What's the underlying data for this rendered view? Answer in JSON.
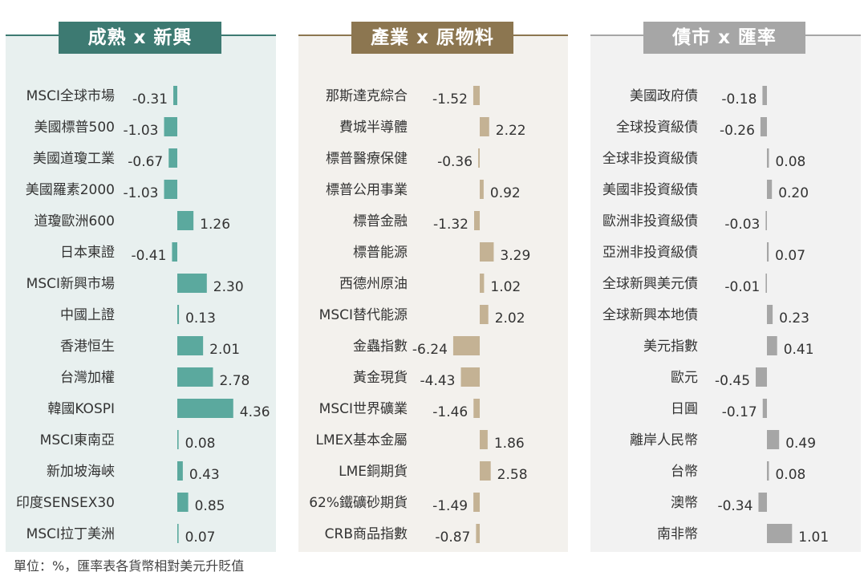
{
  "footnote": "單位：%，匯率表各貨幣相對美元升貶值",
  "chart_data": [
    {
      "type": "bar",
      "title": "成熟 x 新興",
      "orientation": "horizontal",
      "colors": {
        "accent": "#3d7a72",
        "bar": "#5ba99e",
        "background": "#e8f0ef"
      },
      "categories": [
        "MSCI全球市場",
        "美國標普500",
        "美國道瓊工業",
        "美國羅素2000",
        "道瓊歐洲600",
        "日本東證",
        "MSCI新興市場",
        "中國上證",
        "香港恒生",
        "台灣加權",
        "韓國KOSPI",
        "MSCI東南亞",
        "新加坡海峽",
        "印度SENSEX30",
        "MSCI拉丁美洲"
      ],
      "values": [
        -0.31,
        -1.03,
        -0.67,
        -1.03,
        1.26,
        -0.41,
        2.3,
        0.13,
        2.01,
        2.78,
        4.36,
        0.08,
        0.43,
        0.85,
        0.07
      ],
      "labels": [
        "-0.31",
        "-1.03",
        "-0.67",
        "-1.03",
        "1.26",
        "-0.41",
        "2.30",
        "0.13",
        "2.01",
        "2.78",
        "4.36",
        "0.08",
        "0.43",
        "0.85",
        "0.07"
      ]
    },
    {
      "type": "bar",
      "title": "產業 x 原物料",
      "orientation": "horizontal",
      "colors": {
        "accent": "#8c7650",
        "bar": "#c4b294",
        "background": "#f3f1ed"
      },
      "categories": [
        "那斯達克綜合",
        "費城半導體",
        "標普醫療保健",
        "標普公用事業",
        "標普金融",
        "標普能源",
        "西德州原油",
        "MSCI替代能源",
        "金蟲指數",
        "黃金現貨",
        "MSCI世界礦業",
        "LMEX基本金屬",
        "LME銅期貨",
        "62%鐵礦砂期貨",
        "CRB商品指數"
      ],
      "values": [
        -1.52,
        2.22,
        -0.36,
        0.92,
        -1.32,
        3.29,
        1.02,
        2.02,
        -6.24,
        -4.43,
        -1.46,
        1.86,
        2.58,
        -1.49,
        -0.87
      ],
      "labels": [
        "-1.52",
        "2.22",
        "-0.36",
        "0.92",
        "-1.32",
        "3.29",
        "1.02",
        "2.02",
        "-6.24",
        "-4.43",
        "-1.46",
        "1.86",
        "2.58",
        "-1.49",
        "-0.87"
      ]
    },
    {
      "type": "bar",
      "title": "債市 x 匯率",
      "orientation": "horizontal",
      "colors": {
        "accent": "#a6a6a6",
        "bar": "#a6a6a6",
        "background": "#f2f2f2"
      },
      "categories": [
        "美國政府債",
        "全球投資級債",
        "全球非投資級債",
        "美國非投資級債",
        "歐洲非投資級債",
        "亞洲非投資級債",
        "全球新興美元債",
        "全球新興本地債",
        "美元指數",
        "歐元",
        "日圓",
        "離岸人民幣",
        "台幣",
        "澳幣",
        "南非幣"
      ],
      "values": [
        -0.18,
        -0.26,
        0.08,
        0.2,
        -0.03,
        0.07,
        -0.01,
        0.23,
        0.41,
        -0.45,
        -0.17,
        0.49,
        0.08,
        -0.34,
        1.01
      ],
      "labels": [
        "-0.18",
        "-0.26",
        "0.08",
        "0.20",
        "-0.03",
        "0.07",
        "-0.01",
        "0.23",
        "0.41",
        "-0.45",
        "-0.17",
        "0.49",
        "0.08",
        "-0.34",
        "1.01"
      ]
    }
  ]
}
